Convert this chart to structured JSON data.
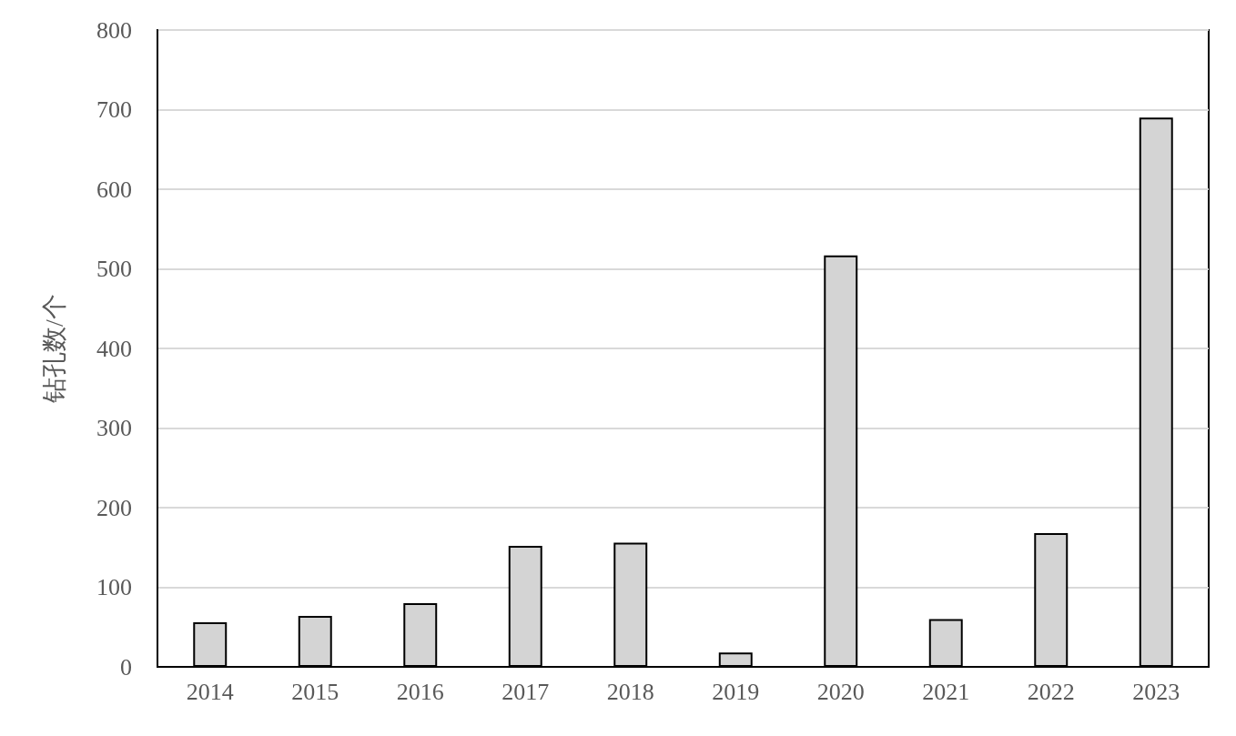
{
  "chart_data": {
    "type": "bar",
    "ylabel": "钻孔数/个",
    "categories": [
      "2014",
      "2015",
      "2016",
      "2017",
      "2018",
      "2019",
      "2020",
      "2021",
      "2022",
      "2023"
    ],
    "values": [
      56,
      64,
      80,
      152,
      156,
      18,
      517,
      60,
      168,
      690
    ],
    "color": "#d4d4d4",
    "ylim": [
      0,
      800
    ],
    "yticks": [
      0,
      100,
      200,
      300,
      400,
      500,
      600,
      700,
      800
    ],
    "grid": "y"
  }
}
